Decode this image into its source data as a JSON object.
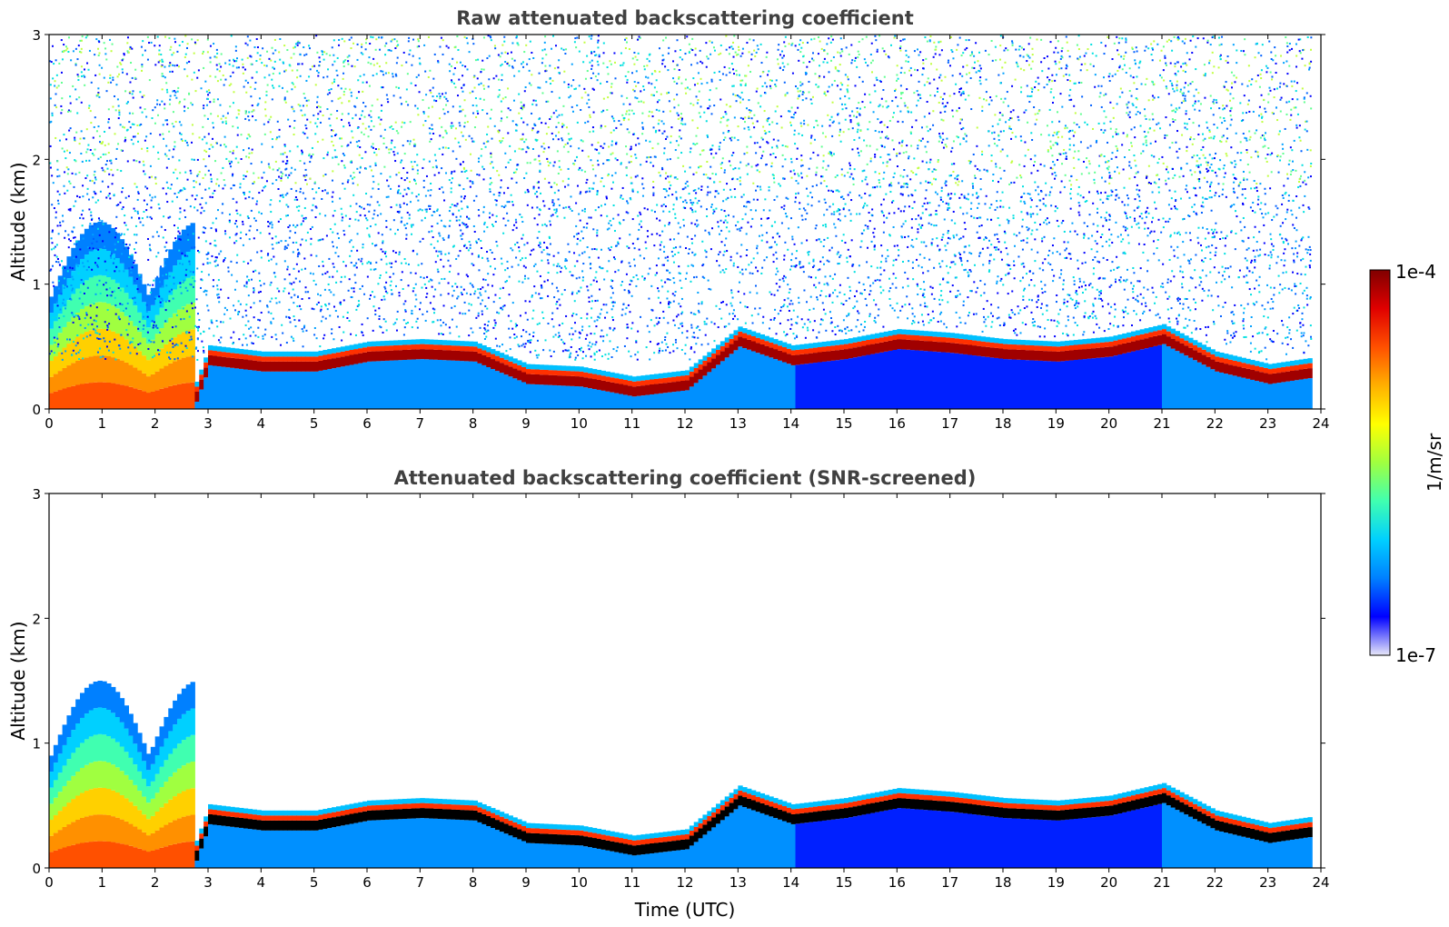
{
  "chart_data": [
    {
      "type": "heatmap",
      "title": "Raw attenuated backscattering coefficient",
      "xlabel": "",
      "ylabel": "Altitude (km)",
      "xlim": [
        0,
        24
      ],
      "ylim": [
        0,
        3
      ],
      "xticks": [
        "0",
        "1",
        "2",
        "3",
        "4",
        "5",
        "6",
        "7",
        "8",
        "9",
        "10",
        "11",
        "12",
        "13",
        "14",
        "15",
        "16",
        "17",
        "18",
        "19",
        "20",
        "21",
        "22",
        "23",
        "24"
      ],
      "yticks": [
        "0",
        "1",
        "2",
        "3"
      ],
      "colormap": "jet",
      "noise": "high",
      "cloud_base_km": {
        "hours": [
          0,
          2.7,
          3,
          4,
          5,
          6,
          7,
          8,
          9,
          10,
          11,
          12,
          13,
          14,
          15,
          16,
          17,
          18,
          19,
          20,
          21,
          22,
          23,
          23.8
        ],
        "values": [
          0,
          0,
          0.35,
          0.3,
          0.3,
          0.38,
          0.4,
          0.38,
          0.2,
          0.18,
          0.1,
          0.15,
          0.5,
          0.35,
          0.4,
          0.48,
          0.45,
          0.4,
          0.38,
          0.42,
          0.52,
          0.3,
          0.2,
          0.25
        ]
      }
    },
    {
      "type": "heatmap",
      "title": "Attenuated backscattering coefficient (SNR-screened)",
      "xlabel": "Time (UTC)",
      "ylabel": "Altitude (km)",
      "xlim": [
        0,
        24
      ],
      "ylim": [
        0,
        3
      ],
      "xticks": [
        "0",
        "1",
        "2",
        "3",
        "4",
        "5",
        "6",
        "7",
        "8",
        "9",
        "10",
        "11",
        "12",
        "13",
        "14",
        "15",
        "16",
        "17",
        "18",
        "19",
        "20",
        "21",
        "22",
        "23",
        "24"
      ],
      "yticks": [
        "0",
        "1",
        "2",
        "3"
      ],
      "colormap": "jet",
      "noise": "none"
    }
  ],
  "colorbar": {
    "max_label": "1e-4",
    "min_label": "1e-7",
    "label": "1/m/sr",
    "stops": [
      "#e8e8f8",
      "#0000ff",
      "#0080ff",
      "#00d0ff",
      "#40ffb0",
      "#a0ff40",
      "#ffff00",
      "#ffb000",
      "#ff5000",
      "#e00000",
      "#800000"
    ]
  }
}
